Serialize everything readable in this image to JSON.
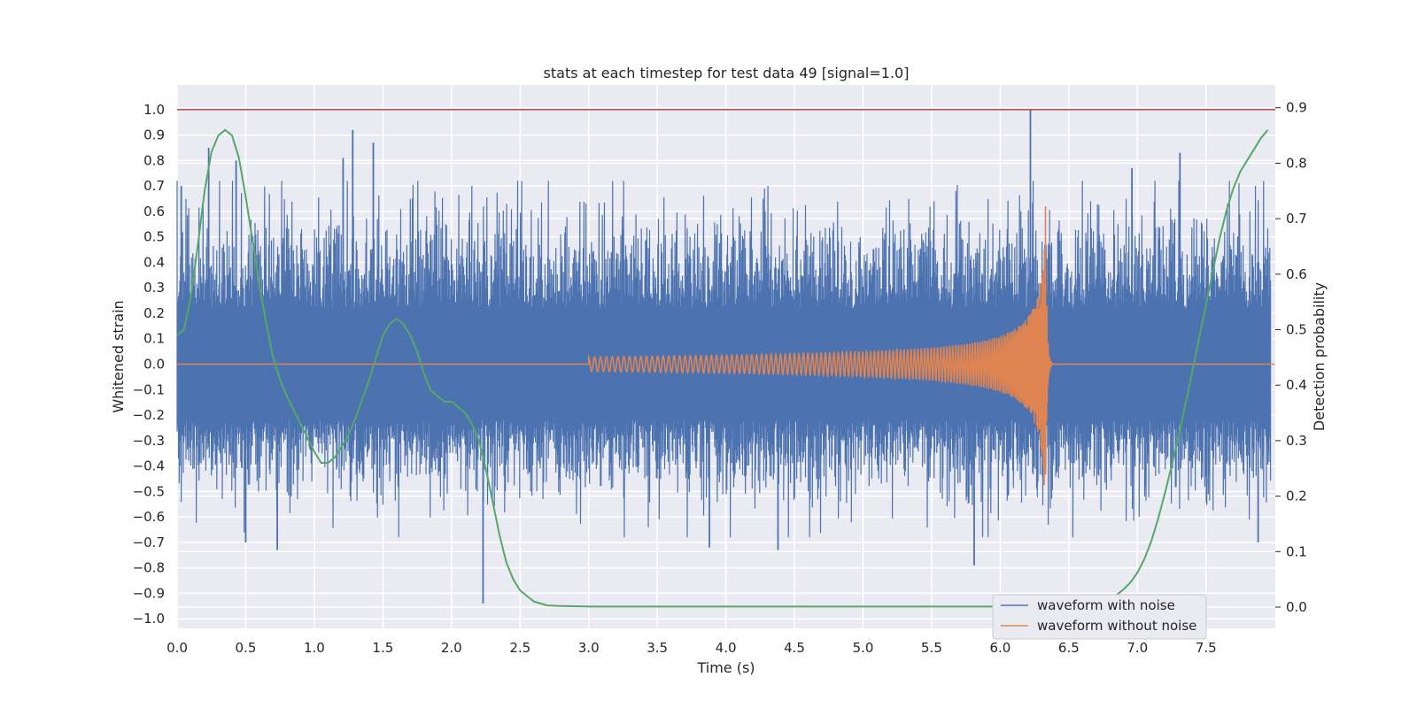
{
  "chart_data": {
    "type": "line",
    "title": "stats at each timestep for test data 49 [signal=1.0]",
    "xlabel": "Time (s)",
    "ylabel": "Whitened strain",
    "y2label": "Detection probability",
    "xlim": [
      0.0,
      8.0
    ],
    "ylim": [
      -1.05,
      1.1
    ],
    "y2lim": [
      -0.04,
      0.94
    ],
    "xticks": [
      "0.0",
      "0.5",
      "1.0",
      "1.5",
      "2.0",
      "2.5",
      "3.0",
      "3.5",
      "4.0",
      "4.5",
      "5.0",
      "5.5",
      "6.0",
      "6.5",
      "7.0",
      "7.5"
    ],
    "yticks": [
      "1.0",
      "0.9",
      "0.8",
      "0.7",
      "0.6",
      "0.5",
      "0.4",
      "0.3",
      "0.2",
      "0.1",
      "0.0",
      "−0.1",
      "−0.2",
      "−0.3",
      "−0.4",
      "−0.5",
      "−0.6",
      "−0.7",
      "−0.8",
      "−0.9",
      "−1.0"
    ],
    "y2ticks": [
      "0.9",
      "0.8",
      "0.7",
      "0.6",
      "0.5",
      "0.4",
      "0.3",
      "0.2",
      "0.1",
      "0.0"
    ],
    "grid": true,
    "legend_position": "lower-right",
    "colors": {
      "noise": "#4c72b0",
      "signal": "#dd8452",
      "probability": "#55a868",
      "threshold": "#c44e52",
      "plot_bg": "#eaeaf2",
      "grid": "#ffffff"
    },
    "series": [
      {
        "name": "waveform with noise",
        "axis": "left",
        "peaks": [
          {
            "x": 0.03,
            "y": 0.7
          },
          {
            "x": 0.23,
            "y": 0.85
          },
          {
            "x": 0.43,
            "y": 0.8
          },
          {
            "x": 0.5,
            "y": -0.7
          },
          {
            "x": 0.73,
            "y": -0.73
          },
          {
            "x": 1.21,
            "y": 0.81
          },
          {
            "x": 1.28,
            "y": 0.92
          },
          {
            "x": 1.43,
            "y": 0.87
          },
          {
            "x": 2.23,
            "y": -0.94
          },
          {
            "x": 3.88,
            "y": -0.72
          },
          {
            "x": 4.38,
            "y": -0.73
          },
          {
            "x": 5.81,
            "y": -0.79
          },
          {
            "x": 6.22,
            "y": 1.0
          },
          {
            "x": 6.96,
            "y": 0.77
          },
          {
            "x": 7.31,
            "y": 0.83
          },
          {
            "x": 7.88,
            "y": -0.7
          }
        ]
      },
      {
        "name": "waveform without noise",
        "axis": "left",
        "chirp": {
          "start": 3.0,
          "merger": 6.33,
          "peak_amplitude": 0.62
        }
      },
      {
        "axis": "right",
        "x": [
          0.0,
          0.05,
          0.1,
          0.15,
          0.2,
          0.25,
          0.3,
          0.35,
          0.4,
          0.45,
          0.5,
          0.55,
          0.6,
          0.65,
          0.7,
          0.75,
          0.8,
          0.9,
          1.0,
          1.05,
          1.1,
          1.15,
          1.2,
          1.25,
          1.3,
          1.4,
          1.5,
          1.55,
          1.6,
          1.65,
          1.7,
          1.75,
          1.8,
          1.85,
          1.9,
          1.95,
          2.0,
          2.1,
          2.15,
          2.2,
          2.25,
          2.3,
          2.35,
          2.4,
          2.45,
          2.5,
          2.55,
          2.6,
          2.7,
          2.8,
          3.0,
          3.5,
          4.0,
          5.0,
          5.5,
          6.0,
          6.3,
          6.5,
          6.6,
          6.7,
          6.8,
          6.85,
          6.9,
          6.95,
          7.0,
          7.05,
          7.1,
          7.15,
          7.2,
          7.25,
          7.3,
          7.35,
          7.4,
          7.45,
          7.5,
          7.55,
          7.6,
          7.65,
          7.7,
          7.75,
          7.8,
          7.85,
          7.9,
          7.95
        ],
        "y": [
          0.49,
          0.5,
          0.56,
          0.65,
          0.75,
          0.82,
          0.85,
          0.86,
          0.85,
          0.81,
          0.74,
          0.66,
          0.58,
          0.51,
          0.45,
          0.41,
          0.38,
          0.33,
          0.28,
          0.26,
          0.26,
          0.27,
          0.29,
          0.31,
          0.34,
          0.41,
          0.49,
          0.51,
          0.52,
          0.51,
          0.49,
          0.46,
          0.42,
          0.39,
          0.38,
          0.37,
          0.37,
          0.35,
          0.33,
          0.3,
          0.25,
          0.19,
          0.13,
          0.08,
          0.05,
          0.03,
          0.02,
          0.01,
          0.003,
          0.002,
          0.001,
          0.001,
          0.001,
          0.001,
          0.001,
          0.001,
          0.001,
          0.002,
          0.004,
          0.008,
          0.015,
          0.022,
          0.032,
          0.045,
          0.062,
          0.086,
          0.118,
          0.158,
          0.205,
          0.255,
          0.308,
          0.365,
          0.425,
          0.485,
          0.545,
          0.605,
          0.665,
          0.715,
          0.755,
          0.785,
          0.805,
          0.825,
          0.845,
          0.86
        ]
      },
      {
        "axis": "left",
        "y_constant": 1.0
      }
    ]
  }
}
